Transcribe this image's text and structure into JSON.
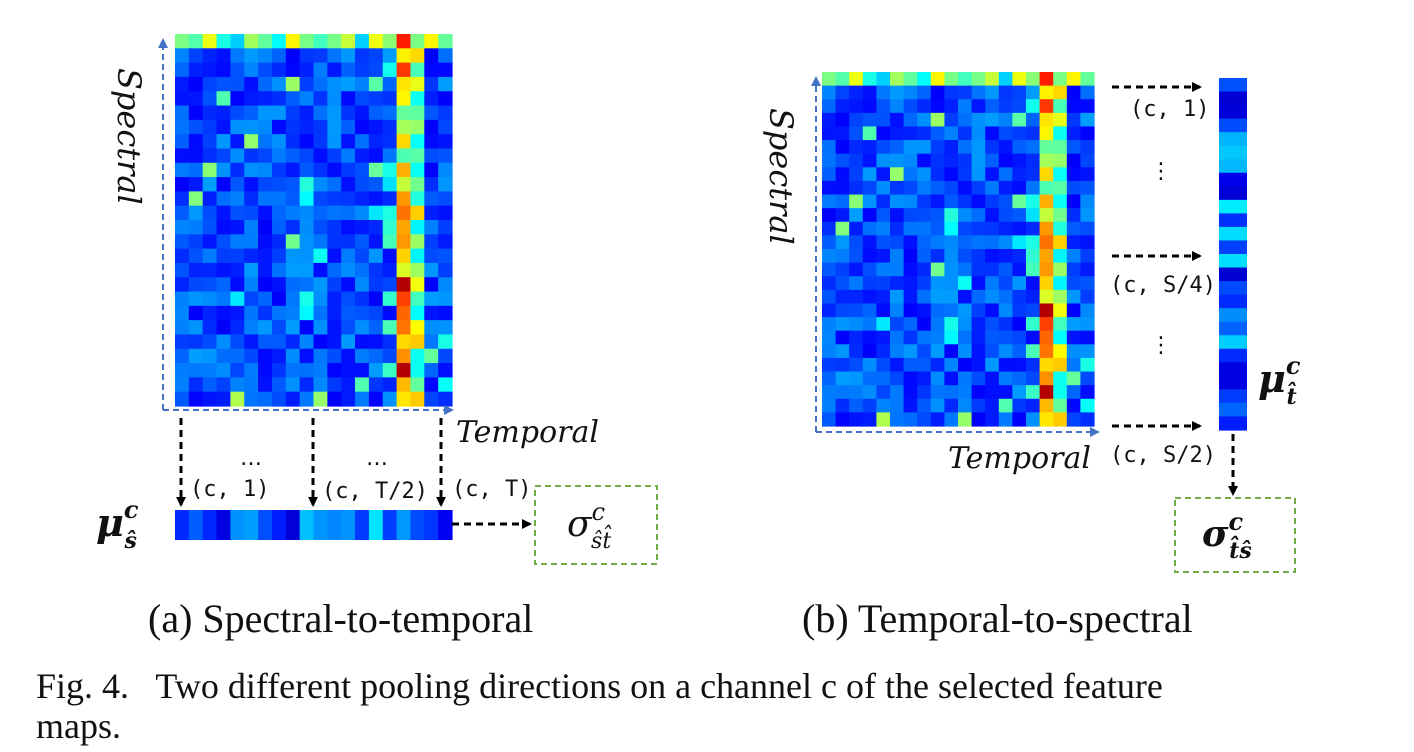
{
  "panel_a": {
    "axis_vertical": "Spectral",
    "axis_horizontal": "Temporal",
    "dots": "…",
    "coord_1": "(c, 1)",
    "coord_2": "(c, T/2)",
    "coord_3": "(c, T)",
    "mu_label": "μ",
    "mu_sup": "c",
    "mu_sub": "ŝ",
    "sigma_label": "σ",
    "sigma_sup": "c",
    "sigma_sub": "ŝt̂",
    "subcaption": "(a) Spectral-to-temporal"
  },
  "panel_b": {
    "axis_vertical": "Spectral",
    "axis_horizontal": "Temporal",
    "vdots": "⋮",
    "coord_1": "(c, 1)",
    "coord_2": "(c, S/4)",
    "coord_3": "(c, S/2)",
    "mu_label": "μ",
    "mu_sup": "c",
    "mu_sub": "t̂",
    "sigma_label": "σ",
    "sigma_sup": "c",
    "sigma_sub": "t̂ŝ",
    "subcaption": "(b) Temporal-to-spectral"
  },
  "caption": {
    "line1": "Fig. 4.   Two different pooling directions on a channel c of the selected feature",
    "line2": "maps."
  },
  "colors": {
    "axis_dashed": "#4472c4",
    "sigma_box": "#70ad47",
    "arrow": "#000000",
    "heatmap_colormap": "jet"
  }
}
